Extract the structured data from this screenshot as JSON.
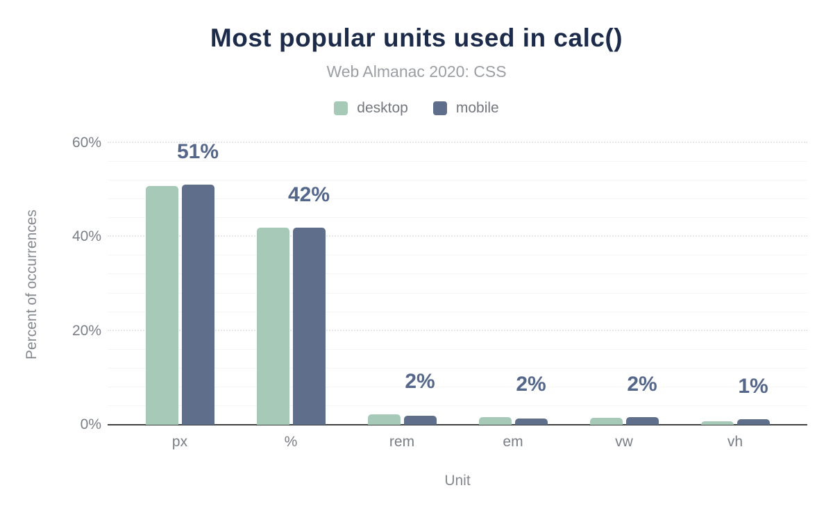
{
  "title": "Most popular units used in calc()",
  "subtitle": "Web Almanac 2020: CSS",
  "palette": {
    "background": "#ffffff",
    "title_color": "#1c2b4a",
    "subtitle_color": "#9b9ea3",
    "axis_label_color": "#797e87",
    "axis_title_color": "#85898f",
    "value_label_color": "#546689",
    "axis_line_color": "#3f4040",
    "major_gridline_color": "#e6e7ea",
    "minor_gridline_color": "#f5f5f6",
    "desktop_color": "#a7c9b8",
    "mobile_color": "#5f6e8a"
  },
  "chart_data": {
    "type": "bar",
    "title": "Most popular units used in calc()",
    "subtitle": "Web Almanac 2020: CSS",
    "categories": [
      "px",
      "%",
      "rem",
      "em",
      "vw",
      "vh"
    ],
    "series": [
      {
        "name": "desktop",
        "color": "#a7c9b8",
        "values": [
          50.9,
          41.9,
          2.2,
          1.7,
          1.5,
          0.8
        ]
      },
      {
        "name": "mobile",
        "color": "#5f6e8a",
        "values": [
          51.2,
          42.0,
          1.9,
          1.4,
          1.7,
          1.2
        ]
      }
    ],
    "value_labels": [
      "51%",
      "42%",
      "2%",
      "2%",
      "2%",
      "1%"
    ],
    "xlabel": "Unit",
    "ylabel": "Percent of occurrences",
    "ylim": [
      0,
      60
    ],
    "yticks": [
      {
        "value": 0,
        "label": "0%"
      },
      {
        "value": 20,
        "label": "20%"
      },
      {
        "value": 40,
        "label": "40%"
      },
      {
        "value": 60,
        "label": "60%"
      }
    ],
    "minor_gridline_step": 4,
    "grid": true,
    "legend_position": "top"
  }
}
